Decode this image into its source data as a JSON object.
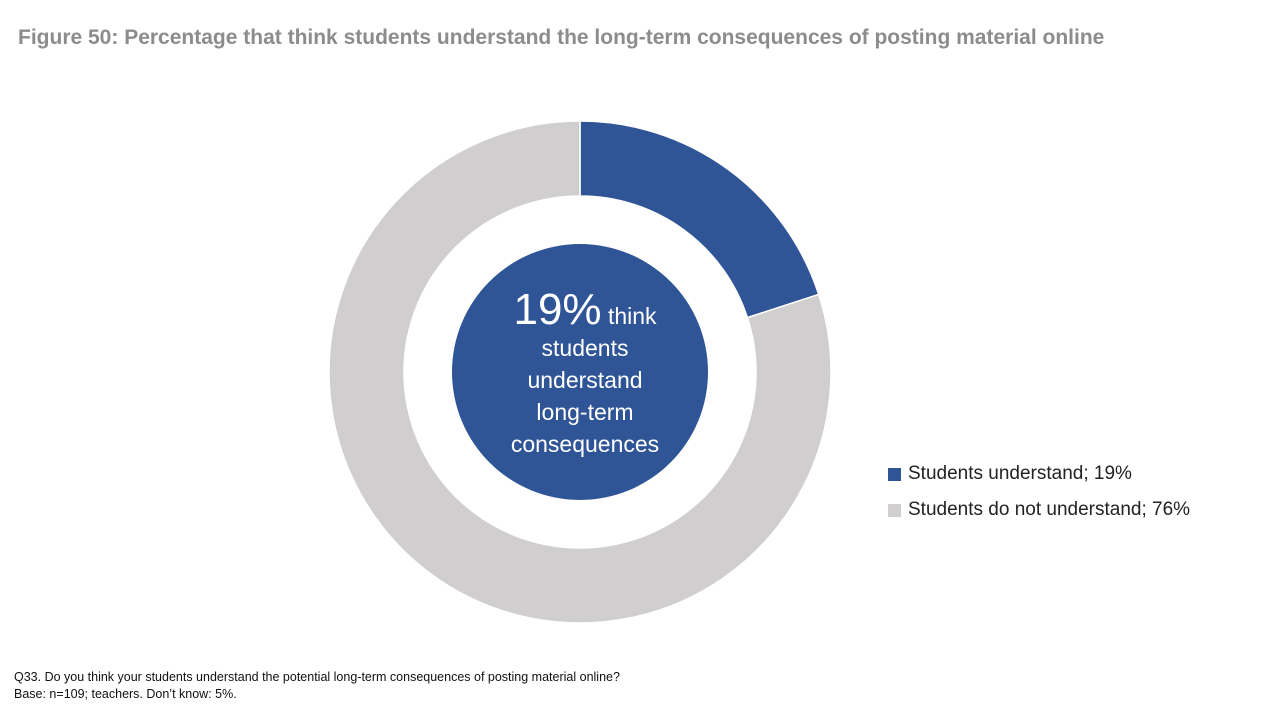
{
  "title": "Figure 50: Percentage that think students understand the long-term consequences of posting material online",
  "chart_data": {
    "type": "pie",
    "donut": true,
    "series": [
      {
        "name": "Students understand",
        "value": 19,
        "color": "#2f5597"
      },
      {
        "name": "Students do not understand",
        "value": 76,
        "color": "#d0cece"
      }
    ],
    "legend": [
      {
        "label": "Students understand; 19%",
        "color": "#2f5597"
      },
      {
        "label": "Students do not understand; 76%",
        "color": "#d0cece"
      }
    ],
    "legend_position": "right",
    "center_label": {
      "value": "19%",
      "line1": "think",
      "line2": "students",
      "line3": "understand",
      "line4": "long-term",
      "line5": "consequences",
      "color": "#2f5597"
    }
  },
  "footnote": {
    "line1": "Q33. Do you think your students understand the potential long-term consequences of posting material online?",
    "line2": "Base: n=109; teachers. Don’t know: 5%."
  }
}
